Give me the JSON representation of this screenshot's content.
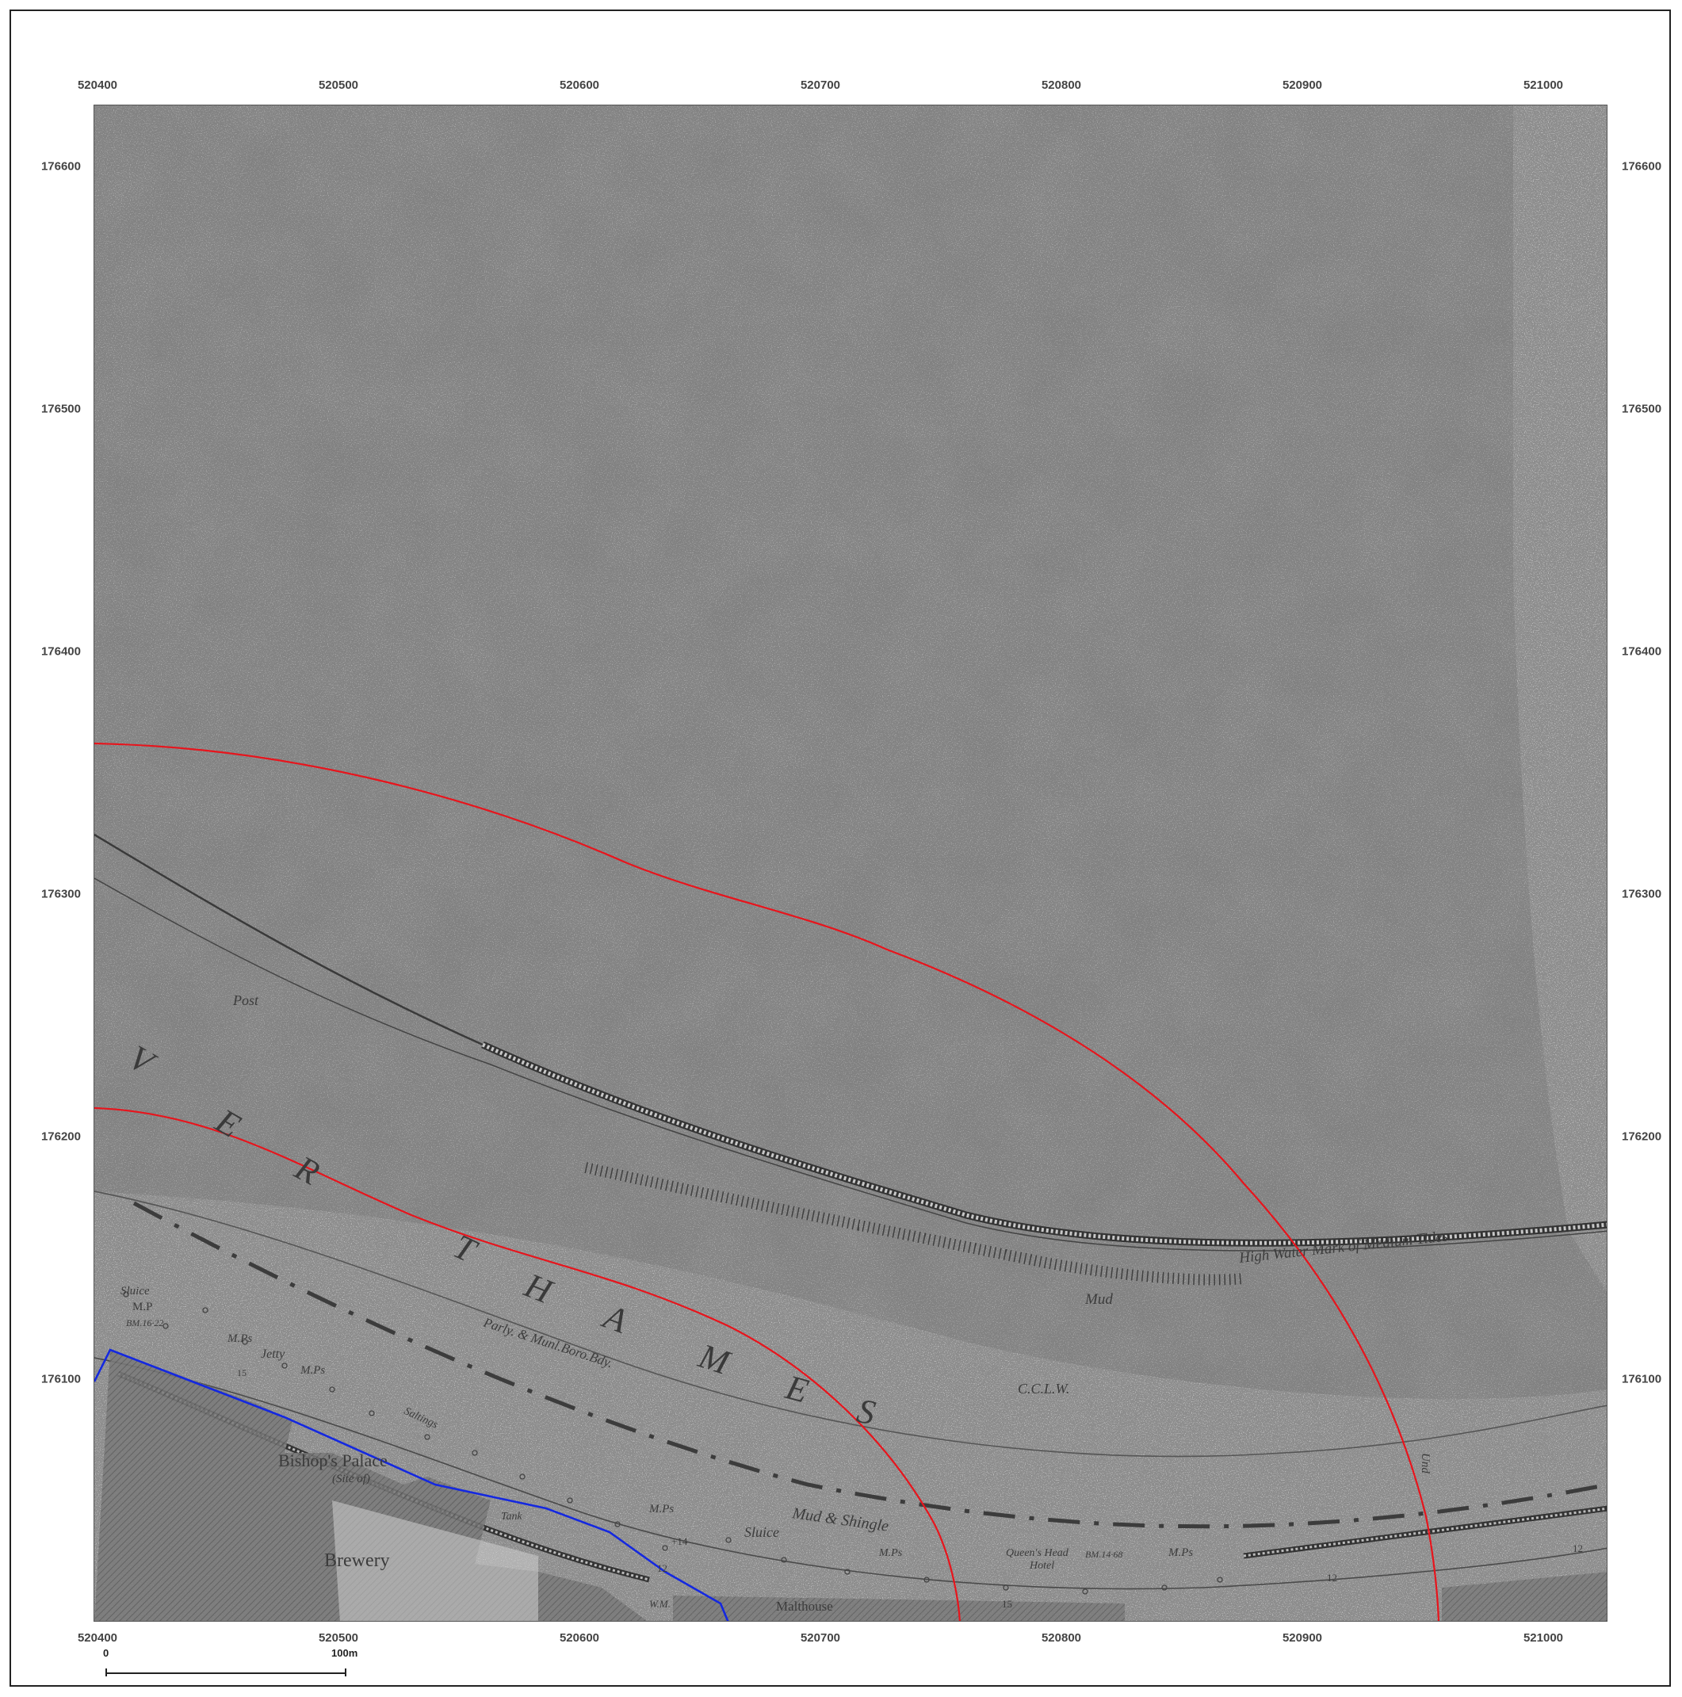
{
  "map": {
    "grid": {
      "x_labels": [
        "520400",
        "520500",
        "520600",
        "520700",
        "520800",
        "520900",
        "521000"
      ],
      "y_labels": [
        "176600",
        "176500",
        "176400",
        "176300",
        "176200",
        "176100"
      ]
    },
    "labels": {
      "river_letters": [
        "V",
        "E",
        "R",
        "T",
        "H",
        "A",
        "M",
        "E",
        "S"
      ],
      "post": "Post",
      "high_water": "High Water Mark of Medium Tides",
      "mud": "Mud",
      "parly": "Parly. & Munl.Boro.Bdy.",
      "cclw": "C.C.L.W.",
      "sluice_left": "Sluice",
      "mp": "M.P",
      "bm_left": "BM.16·22",
      "mps": "M.Ps",
      "jetty": "Jetty",
      "mps2": "M.Ps",
      "saltings": "Saltings",
      "bishops_palace": "Bishop's Palace",
      "site_of": "(Site of)",
      "tank": "Tank",
      "brewery": "Brewery",
      "sluice_mid": "Sluice",
      "mps3": "M.Ps",
      "mud_shingle": "Mud & Shingle",
      "mps4": "M.Ps",
      "queens_head": "Queen's Head",
      "hotel": "Hotel",
      "bm_right": "BM.14·68",
      "mps5": "M.Ps",
      "malthouse": "Malthouse",
      "wm": "W.M.",
      "und": "Und",
      "n12a": "12",
      "n12b": "12",
      "n12c": "12",
      "n15a": "15",
      "n15b": "15",
      "n14": "+14"
    }
  },
  "scale_bar": {
    "start_label": "0",
    "end_label": "100m"
  },
  "colors": {
    "red_boundary": "#e8141c",
    "blue_boundary": "#1428e0"
  }
}
